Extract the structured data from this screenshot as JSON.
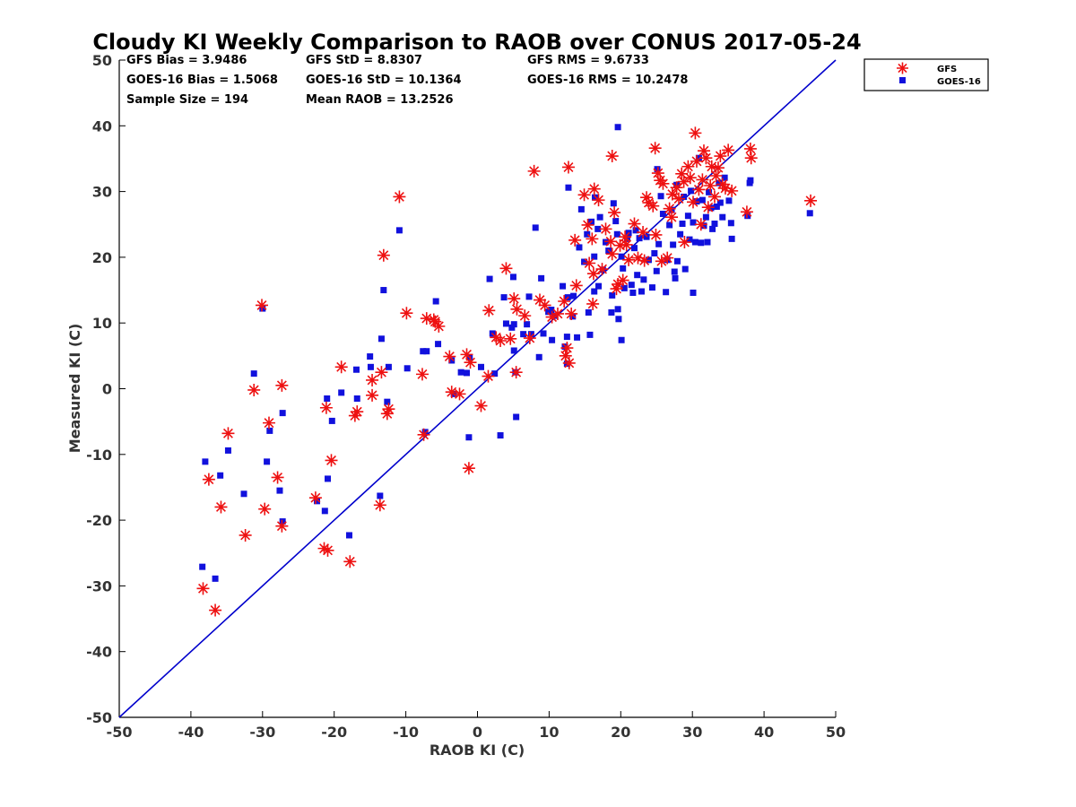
{
  "chart_data": {
    "type": "scatter",
    "title": "Cloudy KI Weekly Comparison to RAOB over CONUS 2017-05-24",
    "xlabel": "RAOB KI (C)",
    "ylabel": "Measured KI (C)",
    "xlim": [
      -50,
      50
    ],
    "ylim": [
      -50,
      50
    ],
    "xticks": [
      "-50",
      "-40",
      "-30",
      "-20",
      "-10",
      "0",
      "10",
      "20",
      "30",
      "40",
      "50"
    ],
    "yticks": [
      "50",
      "40",
      "30",
      "20",
      "10",
      "0",
      "-10",
      "-20",
      "-30",
      "-40",
      "-50"
    ],
    "grid": false,
    "legend_position": "top-right-outside",
    "stats": [
      {
        "text": "GFS Bias = 3.9486"
      },
      {
        "text": "GFS StD = 8.8307"
      },
      {
        "text": "GFS RMS = 9.6733"
      },
      {
        "text": "GOES-16 Bias = 1.5068"
      },
      {
        "text": "GOES-16 StD = 10.1364"
      },
      {
        "text": "GOES-16 RMS = 10.2478"
      },
      {
        "text": "Sample Size = 194"
      },
      {
        "text": "Mean RAOB = 13.2526"
      }
    ],
    "reference_line": {
      "from": [
        -50,
        -50
      ],
      "to": [
        50,
        50
      ],
      "color": "#0000cc"
    },
    "series": [
      {
        "name": "GFS",
        "marker": "asterisk",
        "color": "#ee1111",
        "points": [
          [
            -38.3,
            -30.4
          ],
          [
            -37.5,
            -13.8
          ],
          [
            -36.6,
            -33.7
          ],
          [
            -35.8,
            -18.0
          ],
          [
            -34.8,
            -6.8
          ],
          [
            -32.4,
            -22.3
          ],
          [
            -31.2,
            -0.2
          ],
          [
            -30.1,
            12.7
          ],
          [
            -29.7,
            -18.3
          ],
          [
            -29.1,
            -5.2
          ],
          [
            -27.9,
            -13.5
          ],
          [
            -27.3,
            0.5
          ],
          [
            -27.3,
            -20.9
          ],
          [
            -22.6,
            -16.6
          ],
          [
            -21.4,
            -24.3
          ],
          [
            -20.9,
            -24.6
          ],
          [
            -21.1,
            -2.9
          ],
          [
            -20.4,
            -10.9
          ],
          [
            -19.0,
            3.3
          ],
          [
            -17.8,
            -26.3
          ],
          [
            -17.1,
            -4.1
          ],
          [
            -16.8,
            -3.5
          ],
          [
            -14.7,
            -1.0
          ],
          [
            -14.7,
            1.3
          ],
          [
            -13.6,
            -17.7
          ],
          [
            -13.4,
            2.5
          ],
          [
            -13.1,
            20.3
          ],
          [
            -12.6,
            -3.8
          ],
          [
            -12.4,
            -3.1
          ],
          [
            -10.9,
            29.2
          ],
          [
            -9.9,
            11.5
          ],
          [
            -7.7,
            2.2
          ],
          [
            -7.5,
            -7.0
          ],
          [
            -7.1,
            10.7
          ],
          [
            -6.1,
            10.5
          ],
          [
            -5.4,
            9.5
          ],
          [
            -5.9,
            10.2
          ],
          [
            -3.9,
            4.9
          ],
          [
            -3.6,
            -0.5
          ],
          [
            -2.5,
            -0.8
          ],
          [
            -1.5,
            5.2
          ],
          [
            -1.2,
            -12.1
          ],
          [
            -1.0,
            4.0
          ],
          [
            0.5,
            -2.6
          ],
          [
            1.6,
            11.9
          ],
          [
            1.5,
            1.9
          ],
          [
            2.6,
            7.8
          ],
          [
            3.2,
            7.3
          ],
          [
            4.0,
            18.3
          ],
          [
            5.1,
            13.7
          ],
          [
            4.6,
            7.6
          ],
          [
            5.5,
            12.1
          ],
          [
            5.4,
            2.5
          ],
          [
            6.6,
            11.1
          ],
          [
            7.3,
            7.7
          ],
          [
            7.9,
            33.1
          ],
          [
            8.7,
            13.5
          ],
          [
            9.4,
            12.7
          ],
          [
            10.4,
            10.9
          ],
          [
            11.2,
            11.4
          ],
          [
            12.1,
            13.3
          ],
          [
            12.3,
            5.0
          ],
          [
            12.5,
            6.2
          ],
          [
            12.8,
            3.9
          ],
          [
            12.7,
            33.7
          ],
          [
            13.1,
            11.4
          ],
          [
            13.6,
            22.6
          ],
          [
            13.8,
            15.7
          ],
          [
            14.9,
            29.5
          ],
          [
            15.4,
            24.9
          ],
          [
            15.6,
            19.1
          ],
          [
            16.0,
            22.8
          ],
          [
            16.2,
            17.5
          ],
          [
            16.1,
            12.9
          ],
          [
            16.3,
            30.4
          ],
          [
            16.9,
            28.7
          ],
          [
            17.4,
            18.2
          ],
          [
            17.9,
            24.3
          ],
          [
            18.6,
            22.4
          ],
          [
            18.8,
            35.4
          ],
          [
            18.8,
            20.5
          ],
          [
            19.1,
            26.8
          ],
          [
            19.6,
            15.9
          ],
          [
            19.4,
            15.2
          ],
          [
            19.9,
            21.8
          ],
          [
            20.3,
            16.5
          ],
          [
            20.6,
            23.1
          ],
          [
            20.8,
            21.9
          ],
          [
            21.1,
            19.6
          ],
          [
            21.9,
            25.1
          ],
          [
            22.4,
            19.9
          ],
          [
            23.1,
            23.8
          ],
          [
            23.3,
            19.5
          ],
          [
            23.6,
            29.1
          ],
          [
            23.9,
            28.3
          ],
          [
            24.5,
            27.8
          ],
          [
            24.8,
            36.6
          ],
          [
            24.9,
            23.4
          ],
          [
            25.2,
            32.8
          ],
          [
            25.5,
            31.7
          ],
          [
            25.7,
            19.4
          ],
          [
            25.9,
            31.2
          ],
          [
            26.5,
            19.9
          ],
          [
            26.8,
            27.4
          ],
          [
            27.1,
            26.1
          ],
          [
            27.2,
            29.6
          ],
          [
            27.8,
            30.6
          ],
          [
            28.1,
            28.9
          ],
          [
            28.5,
            32.7
          ],
          [
            28.8,
            31.5
          ],
          [
            28.9,
            22.3
          ],
          [
            29.4,
            33.8
          ],
          [
            29.7,
            32.1
          ],
          [
            30.1,
            28.4
          ],
          [
            30.4,
            38.9
          ],
          [
            30.6,
            34.6
          ],
          [
            30.9,
            30.3
          ],
          [
            31.2,
            25.0
          ],
          [
            31.4,
            31.8
          ],
          [
            31.6,
            36.2
          ],
          [
            31.9,
            35.1
          ],
          [
            32.2,
            27.6
          ],
          [
            32.5,
            30.9
          ],
          [
            32.7,
            33.8
          ],
          [
            33.1,
            29.2
          ],
          [
            33.3,
            32.4
          ],
          [
            33.6,
            33.6
          ],
          [
            33.9,
            35.4
          ],
          [
            34.2,
            31.1
          ],
          [
            34.6,
            30.5
          ],
          [
            35.0,
            36.3
          ],
          [
            35.5,
            30.1
          ],
          [
            37.6,
            26.9
          ],
          [
            38.1,
            36.5
          ],
          [
            38.2,
            35.1
          ],
          [
            46.5,
            28.6
          ]
        ]
      },
      {
        "name": "GOES-16",
        "marker": "square",
        "color": "#1111dd",
        "points": [
          [
            -38.4,
            -27.1
          ],
          [
            -38.0,
            -11.1
          ],
          [
            -36.6,
            -28.9
          ],
          [
            -35.9,
            -13.2
          ],
          [
            -34.8,
            -9.4
          ],
          [
            -32.6,
            -16.0
          ],
          [
            -31.2,
            2.3
          ],
          [
            -30.0,
            12.2
          ],
          [
            -29.4,
            -11.1
          ],
          [
            -29.0,
            -6.4
          ],
          [
            -27.6,
            -15.5
          ],
          [
            -27.2,
            -3.7
          ],
          [
            -27.2,
            -20.2
          ],
          [
            -22.4,
            -17.1
          ],
          [
            -21.3,
            -18.6
          ],
          [
            -21.0,
            -1.5
          ],
          [
            -20.9,
            -13.7
          ],
          [
            -20.3,
            -4.9
          ],
          [
            -19.0,
            -0.6
          ],
          [
            -17.9,
            -22.3
          ],
          [
            -16.9,
            2.9
          ],
          [
            -16.8,
            -1.5
          ],
          [
            -15.0,
            4.9
          ],
          [
            -14.9,
            3.3
          ],
          [
            -13.6,
            -16.3
          ],
          [
            -13.4,
            7.6
          ],
          [
            -13.1,
            15.0
          ],
          [
            -12.6,
            -2.0
          ],
          [
            -12.4,
            3.3
          ],
          [
            -10.9,
            24.1
          ],
          [
            -9.8,
            3.1
          ],
          [
            -7.6,
            5.7
          ],
          [
            -7.3,
            -6.6
          ],
          [
            -7.1,
            5.7
          ],
          [
            -5.8,
            13.3
          ],
          [
            -5.5,
            6.8
          ],
          [
            -3.6,
            4.3
          ],
          [
            -3.3,
            -0.8
          ],
          [
            -2.3,
            2.5
          ],
          [
            -1.5,
            2.4
          ],
          [
            -1.2,
            -7.4
          ],
          [
            -1.1,
            4.8
          ],
          [
            0.5,
            3.3
          ],
          [
            1.7,
            16.7
          ],
          [
            2.1,
            8.4
          ],
          [
            2.4,
            2.3
          ],
          [
            3.2,
            -7.1
          ],
          [
            3.7,
            13.9
          ],
          [
            4.0,
            9.9
          ],
          [
            4.8,
            9.3
          ],
          [
            5.0,
            17.0
          ],
          [
            5.1,
            5.8
          ],
          [
            5.3,
            2.5
          ],
          [
            5.1,
            9.8
          ],
          [
            5.4,
            -4.3
          ],
          [
            6.4,
            8.3
          ],
          [
            6.9,
            9.8
          ],
          [
            7.2,
            14.0
          ],
          [
            7.5,
            8.3
          ],
          [
            8.1,
            24.5
          ],
          [
            8.6,
            4.8
          ],
          [
            8.9,
            16.8
          ],
          [
            9.2,
            8.4
          ],
          [
            9.9,
            11.7
          ],
          [
            10.3,
            12.0
          ],
          [
            10.4,
            7.4
          ],
          [
            10.8,
            11.1
          ],
          [
            11.9,
            15.6
          ],
          [
            12.2,
            6.4
          ],
          [
            12.5,
            3.8
          ],
          [
            12.5,
            7.9
          ],
          [
            12.6,
            13.9
          ],
          [
            12.7,
            30.6
          ],
          [
            13.3,
            11.0
          ],
          [
            13.4,
            14.1
          ],
          [
            13.9,
            7.8
          ],
          [
            14.2,
            21.5
          ],
          [
            14.5,
            27.3
          ],
          [
            14.9,
            19.3
          ],
          [
            15.3,
            23.5
          ],
          [
            15.5,
            11.6
          ],
          [
            15.7,
            8.2
          ],
          [
            15.9,
            25.4
          ],
          [
            16.3,
            14.8
          ],
          [
            16.3,
            20.1
          ],
          [
            16.4,
            29.1
          ],
          [
            16.8,
            24.3
          ],
          [
            16.9,
            15.6
          ],
          [
            17.1,
            26.1
          ],
          [
            17.5,
            18.1
          ],
          [
            17.9,
            22.3
          ],
          [
            18.3,
            21.0
          ],
          [
            18.7,
            11.6
          ],
          [
            18.8,
            14.2
          ],
          [
            19.0,
            28.2
          ],
          [
            19.3,
            25.5
          ],
          [
            19.5,
            23.5
          ],
          [
            19.6,
            39.8
          ],
          [
            19.6,
            12.1
          ],
          [
            19.7,
            10.6
          ],
          [
            20.1,
            7.4
          ],
          [
            20.1,
            20.1
          ],
          [
            20.3,
            18.3
          ],
          [
            20.5,
            15.3
          ],
          [
            20.9,
            22.8
          ],
          [
            21.1,
            23.7
          ],
          [
            21.5,
            15.8
          ],
          [
            21.7,
            14.6
          ],
          [
            21.9,
            21.4
          ],
          [
            22.1,
            24.1
          ],
          [
            22.3,
            17.3
          ],
          [
            22.6,
            22.9
          ],
          [
            22.9,
            14.8
          ],
          [
            23.2,
            16.6
          ],
          [
            23.6,
            23.1
          ],
          [
            23.9,
            19.6
          ],
          [
            24.4,
            15.4
          ],
          [
            24.7,
            20.6
          ],
          [
            25.1,
            33.4
          ],
          [
            25.0,
            17.9
          ],
          [
            25.3,
            22.0
          ],
          [
            25.6,
            29.3
          ],
          [
            25.9,
            26.6
          ],
          [
            26.3,
            14.7
          ],
          [
            26.5,
            19.6
          ],
          [
            26.8,
            24.9
          ],
          [
            27.1,
            27.2
          ],
          [
            27.3,
            21.9
          ],
          [
            27.5,
            17.8
          ],
          [
            27.6,
            16.8
          ],
          [
            27.8,
            31.0
          ],
          [
            27.9,
            19.4
          ],
          [
            28.3,
            23.5
          ],
          [
            28.6,
            25.1
          ],
          [
            28.8,
            29.2
          ],
          [
            29.0,
            18.2
          ],
          [
            29.4,
            26.3
          ],
          [
            29.6,
            22.7
          ],
          [
            29.8,
            30.1
          ],
          [
            30.1,
            25.3
          ],
          [
            30.1,
            14.6
          ],
          [
            30.4,
            22.3
          ],
          [
            30.6,
            28.5
          ],
          [
            30.9,
            35.1
          ],
          [
            31.2,
            22.2
          ],
          [
            31.4,
            28.7
          ],
          [
            31.6,
            24.8
          ],
          [
            31.9,
            26.1
          ],
          [
            32.1,
            22.3
          ],
          [
            32.3,
            29.9
          ],
          [
            32.6,
            27.5
          ],
          [
            32.8,
            24.3
          ],
          [
            33.1,
            25.1
          ],
          [
            33.4,
            27.7
          ],
          [
            33.7,
            31.3
          ],
          [
            33.9,
            28.3
          ],
          [
            34.2,
            26.1
          ],
          [
            34.5,
            32.1
          ],
          [
            35.1,
            28.6
          ],
          [
            35.4,
            25.2
          ],
          [
            35.5,
            22.8
          ],
          [
            37.7,
            26.3
          ],
          [
            38.1,
            31.7
          ],
          [
            38.0,
            31.3
          ],
          [
            46.4,
            26.7
          ]
        ]
      }
    ]
  }
}
